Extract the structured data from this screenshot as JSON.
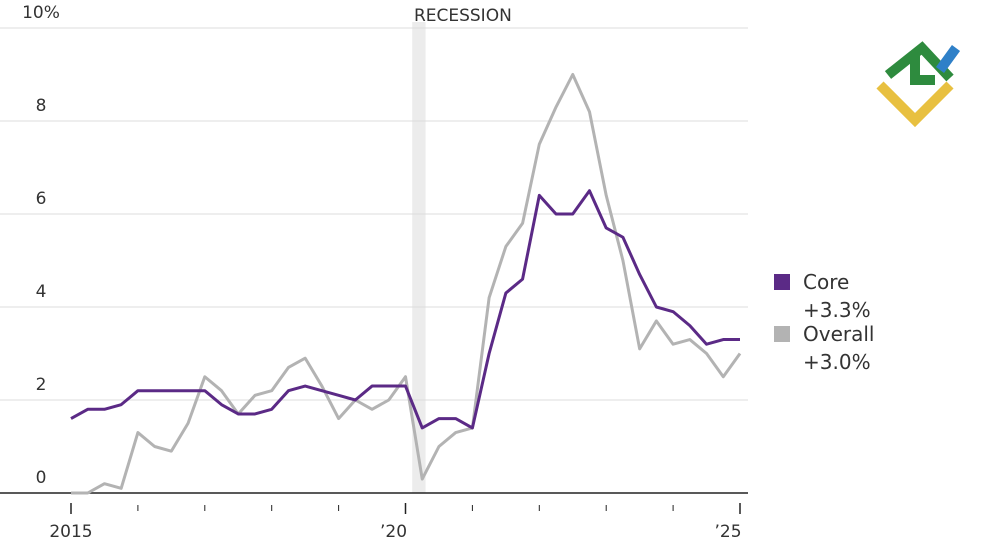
{
  "chart_data": {
    "type": "line",
    "annotation": {
      "label": "RECESSION",
      "start": 2020.1,
      "end": 2020.3
    },
    "xlim": [
      2015,
      2025
    ],
    "xticks": [
      2015,
      {
        "value": 2020,
        "label": "’20"
      },
      {
        "value": 2025,
        "label": "’25"
      }
    ],
    "xminorticks": [
      2016,
      2017,
      2018,
      2019,
      2021,
      2022,
      2023,
      2024
    ],
    "ylim": [
      0,
      10
    ],
    "yticks": [
      0,
      2,
      4,
      6,
      8,
      {
        "value": 10,
        "label": "10%"
      }
    ],
    "grid": true,
    "legend": "right",
    "x": [
      2015,
      2015.25,
      2015.5,
      2015.75,
      2016,
      2016.25,
      2016.5,
      2016.75,
      2017,
      2017.25,
      2017.5,
      2017.75,
      2018,
      2018.25,
      2018.5,
      2018.75,
      2019,
      2019.25,
      2019.5,
      2019.75,
      2020,
      2020.25,
      2020.5,
      2020.75,
      2021,
      2021.25,
      2021.5,
      2021.75,
      2022,
      2022.25,
      2022.5,
      2022.75,
      2023,
      2023.25,
      2023.5,
      2023.75,
      2024,
      2024.25,
      2024.5,
      2024.75,
      2025
    ],
    "series": [
      {
        "name": "Overall +3.0%",
        "color": "#b3b3b3",
        "values": [
          0,
          0,
          0.2,
          0.1,
          1.3,
          1.0,
          0.9,
          1.5,
          2.5,
          2.2,
          1.7,
          2.1,
          2.2,
          2.7,
          2.9,
          2.3,
          1.6,
          2.0,
          1.8,
          2.0,
          2.5,
          0.3,
          1.0,
          1.3,
          1.4,
          4.2,
          5.3,
          5.8,
          7.5,
          8.3,
          9.0,
          8.2,
          6.4,
          5.0,
          3.1,
          3.7,
          3.2,
          3.3,
          3.0,
          2.5,
          3.0
        ]
      },
      {
        "name": "Core +3.3%",
        "color": "#5b2a86",
        "values": [
          1.6,
          1.8,
          1.8,
          1.9,
          2.2,
          2.2,
          2.2,
          2.2,
          2.2,
          1.9,
          1.7,
          1.7,
          1.8,
          2.2,
          2.3,
          2.2,
          2.1,
          2.0,
          2.3,
          2.3,
          2.3,
          1.4,
          1.6,
          1.6,
          1.4,
          3.0,
          4.3,
          4.6,
          6.4,
          6.0,
          6.0,
          6.5,
          5.7,
          5.5,
          4.7,
          4.0,
          3.9,
          3.6,
          3.2,
          3.3,
          3.3
        ]
      }
    ]
  }
}
